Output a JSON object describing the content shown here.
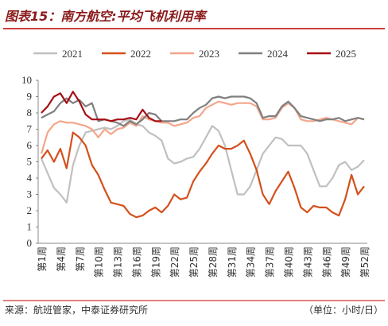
{
  "chart_data": {
    "type": "line",
    "title": "图表15：南方航空:平均飞机利用率",
    "source": "来源：航班管家，中泰证券研究所",
    "unit": "（单位：小时/日）",
    "categories": [
      "第1周",
      null,
      null,
      "第4周",
      null,
      null,
      "第7周",
      null,
      null,
      "第10周",
      null,
      null,
      "第13周",
      null,
      null,
      "第16周",
      null,
      null,
      "第19周",
      null,
      null,
      "第22周",
      null,
      null,
      "第25周",
      null,
      null,
      "第28周",
      null,
      null,
      "第31周",
      null,
      null,
      "第34周",
      null,
      null,
      "第37周",
      null,
      null,
      "第40周",
      null,
      null,
      "第43周",
      null,
      null,
      "第46周",
      null,
      null,
      "第49周",
      null,
      null,
      "第52周"
    ],
    "ylim": [
      0,
      10
    ],
    "yticks": [
      0,
      1,
      2,
      3,
      4,
      5,
      6,
      7,
      8,
      9,
      10
    ],
    "series": [
      {
        "name": "2021",
        "color": "#c0c0c0",
        "values": [
          5.2,
          4.3,
          3.4,
          3.0,
          2.5,
          4.8,
          6.0,
          6.8,
          6.9,
          7.0,
          7.1,
          7.0,
          7.2,
          7.5,
          7.6,
          7.3,
          7.2,
          6.8,
          6.6,
          6.3,
          5.2,
          4.9,
          5.0,
          5.2,
          5.3,
          5.8,
          6.5,
          7.2,
          6.9,
          6.0,
          4.5,
          3.0,
          3.0,
          3.5,
          4.5,
          5.5,
          6.0,
          6.5,
          6.4,
          6.0,
          6.0,
          6.0,
          5.5,
          4.5,
          3.5,
          3.5,
          4.0,
          4.8,
          5.0,
          4.5,
          4.7,
          5.1
        ]
      },
      {
        "name": "2022",
        "color": "#d4501c",
        "values": [
          5.2,
          5.7,
          5.0,
          5.8,
          4.6,
          6.8,
          6.5,
          6.0,
          4.8,
          4.2,
          3.3,
          2.5,
          2.4,
          2.3,
          1.8,
          1.6,
          1.7,
          2.0,
          2.2,
          1.9,
          2.3,
          3.0,
          2.7,
          2.8,
          3.8,
          4.4,
          4.9,
          5.5,
          6.0,
          5.8,
          5.8,
          6.0,
          6.3,
          5.5,
          4.5,
          3.0,
          2.4,
          3.2,
          3.8,
          4.4,
          3.4,
          2.2,
          1.9,
          2.3,
          2.2,
          2.2,
          1.9,
          1.7,
          2.7,
          4.2,
          3.0,
          3.5
        ]
      },
      {
        "name": "2023",
        "color": "#f4a58a",
        "values": [
          5.5,
          6.8,
          7.3,
          7.5,
          7.4,
          7.4,
          7.3,
          7.2,
          7.0,
          6.5,
          7.0,
          6.7,
          7.0,
          7.1,
          7.4,
          7.2,
          7.8,
          7.6,
          7.5,
          7.4,
          7.4,
          7.2,
          7.3,
          7.4,
          7.7,
          7.8,
          8.3,
          8.5,
          8.7,
          8.6,
          8.5,
          8.6,
          8.6,
          8.6,
          8.4,
          7.6,
          7.6,
          7.7,
          8.3,
          8.6,
          8.3,
          7.6,
          7.5,
          7.5,
          7.6,
          7.7,
          7.6,
          7.5,
          7.4,
          7.3,
          7.7,
          7.6
        ]
      },
      {
        "name": "2024",
        "color": "#7f7f7f",
        "values": [
          7.7,
          7.9,
          8.1,
          8.6,
          8.9,
          8.6,
          8.8,
          8.4,
          8.6,
          7.5,
          7.6,
          7.5,
          7.4,
          7.2,
          7.5,
          7.3,
          7.6,
          8.0,
          7.9,
          7.5,
          7.5,
          7.5,
          7.6,
          7.6,
          8.0,
          8.3,
          8.5,
          8.9,
          9.0,
          8.9,
          9.0,
          9.0,
          9.0,
          8.9,
          8.6,
          7.7,
          7.8,
          7.8,
          8.4,
          8.7,
          8.3,
          7.8,
          7.7,
          7.6,
          7.5,
          7.6,
          7.6,
          7.7,
          7.5,
          7.6,
          7.7,
          7.6
        ]
      },
      {
        "name": "2025",
        "color": "#a50f15",
        "values": [
          8.0,
          8.4,
          9.0,
          9.2,
          8.6,
          9.3,
          8.7,
          7.9,
          7.6,
          7.6,
          7.6,
          7.5,
          7.6,
          7.6,
          7.7,
          7.6,
          8.2,
          7.7,
          7.5,
          7.5,
          null,
          null,
          null,
          null,
          null,
          null,
          null,
          null,
          null,
          null,
          null,
          null,
          null,
          null,
          null,
          null,
          null,
          null,
          null,
          null,
          null,
          null,
          null,
          null,
          null,
          null,
          null,
          null,
          null,
          null,
          null,
          null
        ]
      }
    ]
  }
}
